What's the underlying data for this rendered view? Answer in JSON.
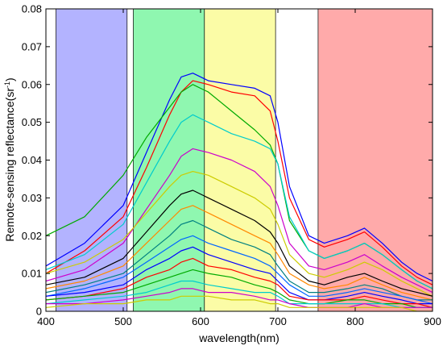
{
  "chart_data": {
    "type": "line",
    "title": "",
    "xlabel": "wavelength(nm)",
    "ylabel_main": "Remote-sensing reflectance(sr",
    "ylabel_sup": "-1",
    "ylabel_close": ")",
    "xlim": [
      400,
      900
    ],
    "ylim": [
      0,
      0.08
    ],
    "x_ticks": [
      400,
      500,
      600,
      700,
      800,
      900
    ],
    "x_tick_labels": [
      "400",
      "500",
      "600",
      "700",
      "800",
      "900"
    ],
    "y_ticks": [
      0,
      0.01,
      0.02,
      0.03,
      0.04,
      0.05,
      0.06,
      0.07,
      0.08
    ],
    "y_tick_labels": [
      "0",
      "0.01",
      "0.02",
      "0.03",
      "0.04",
      "0.05",
      "0.06",
      "0.07",
      "0.08"
    ],
    "grid": false,
    "legend": "none",
    "bands": [
      {
        "range": [
          413,
          505
        ],
        "color": "#b3b3ff"
      },
      {
        "range": [
          513,
          605
        ],
        "color": "#8ff7b0"
      },
      {
        "range": [
          605,
          697
        ],
        "color": "#fbfca6"
      },
      {
        "range": [
          752,
          900
        ],
        "color": "#ffaaaa"
      }
    ],
    "series_colors": [
      "#0000ff",
      "#ff0000",
      "#00aa00",
      "#00cccc",
      "#cc00cc",
      "#cccc00",
      "#000000",
      "#ff8800",
      "#008080",
      "#0066ff"
    ],
    "spectral_key_x": [
      400,
      450,
      500,
      530,
      560,
      575,
      590,
      610,
      640,
      670,
      690,
      700,
      715,
      740,
      760,
      790,
      812,
      835,
      860,
      880,
      900
    ],
    "series": [
      {
        "values": [
          0.012,
          0.018,
          0.028,
          0.042,
          0.056,
          0.062,
          0.063,
          0.061,
          0.06,
          0.059,
          0.057,
          0.05,
          0.033,
          0.02,
          0.018,
          0.02,
          0.022,
          0.018,
          0.013,
          0.01,
          0.008
        ]
      },
      {
        "values": [
          0.01,
          0.016,
          0.025,
          0.038,
          0.052,
          0.058,
          0.061,
          0.06,
          0.058,
          0.057,
          0.053,
          0.045,
          0.03,
          0.019,
          0.017,
          0.019,
          0.021,
          0.017,
          0.012,
          0.009,
          0.007
        ]
      },
      {
        "values": [
          0.02,
          0.025,
          0.036,
          0.046,
          0.054,
          0.058,
          0.06,
          0.058,
          0.053,
          0.048,
          0.044,
          0.039,
          0.024,
          0.016,
          0.014,
          0.016,
          0.018,
          0.015,
          0.011,
          0.008,
          0.006
        ]
      },
      {
        "values": [
          0.011,
          0.015,
          0.023,
          0.034,
          0.045,
          0.05,
          0.052,
          0.05,
          0.047,
          0.045,
          0.043,
          0.039,
          0.025,
          0.016,
          0.014,
          0.016,
          0.018,
          0.015,
          0.011,
          0.008,
          0.006
        ]
      },
      {
        "values": [
          0.008,
          0.011,
          0.018,
          0.027,
          0.036,
          0.041,
          0.043,
          0.042,
          0.04,
          0.037,
          0.033,
          0.028,
          0.018,
          0.012,
          0.011,
          0.013,
          0.015,
          0.012,
          0.009,
          0.007,
          0.005
        ]
      },
      {
        "values": [
          0.01,
          0.013,
          0.019,
          0.026,
          0.033,
          0.036,
          0.037,
          0.036,
          0.033,
          0.03,
          0.027,
          0.023,
          0.015,
          0.01,
          0.009,
          0.011,
          0.013,
          0.011,
          0.008,
          0.006,
          0.004
        ]
      },
      {
        "values": [
          0.007,
          0.009,
          0.014,
          0.021,
          0.028,
          0.031,
          0.032,
          0.03,
          0.027,
          0.024,
          0.021,
          0.018,
          0.012,
          0.008,
          0.007,
          0.009,
          0.01,
          0.008,
          0.006,
          0.005,
          0.004
        ]
      },
      {
        "values": [
          0.006,
          0.008,
          0.012,
          0.018,
          0.024,
          0.027,
          0.028,
          0.026,
          0.023,
          0.02,
          0.018,
          0.015,
          0.01,
          0.007,
          0.006,
          0.007,
          0.009,
          0.007,
          0.005,
          0.004,
          0.003
        ]
      },
      {
        "values": [
          0.005,
          0.007,
          0.01,
          0.015,
          0.02,
          0.023,
          0.024,
          0.022,
          0.019,
          0.017,
          0.015,
          0.012,
          0.008,
          0.005,
          0.005,
          0.006,
          0.007,
          0.006,
          0.004,
          0.003,
          0.003
        ]
      },
      {
        "values": [
          0.004,
          0.006,
          0.009,
          0.013,
          0.017,
          0.019,
          0.02,
          0.018,
          0.016,
          0.014,
          0.012,
          0.01,
          0.007,
          0.004,
          0.004,
          0.005,
          0.006,
          0.005,
          0.004,
          0.003,
          0.002
        ]
      },
      {
        "values": [
          0.004,
          0.005,
          0.007,
          0.011,
          0.014,
          0.016,
          0.017,
          0.015,
          0.013,
          0.011,
          0.01,
          0.008,
          0.005,
          0.003,
          0.003,
          0.004,
          0.005,
          0.004,
          0.003,
          0.002,
          0.002
        ]
      },
      {
        "values": [
          0.003,
          0.004,
          0.006,
          0.009,
          0.011,
          0.013,
          0.014,
          0.012,
          0.011,
          0.009,
          0.008,
          0.007,
          0.004,
          0.003,
          0.003,
          0.003,
          0.004,
          0.003,
          0.002,
          0.002,
          0.001
        ]
      },
      {
        "values": [
          0.003,
          0.004,
          0.005,
          0.007,
          0.009,
          0.01,
          0.011,
          0.01,
          0.009,
          0.007,
          0.006,
          0.005,
          0.003,
          0.002,
          0.002,
          0.003,
          0.003,
          0.002,
          0.002,
          0.001,
          0.001
        ]
      },
      {
        "values": [
          0.002,
          0.003,
          0.004,
          0.005,
          0.007,
          0.008,
          0.008,
          0.007,
          0.006,
          0.005,
          0.005,
          0.004,
          0.002,
          0.002,
          0.002,
          0.002,
          0.002,
          0.002,
          0.001,
          0.001,
          0.001
        ]
      },
      {
        "values": [
          0.002,
          0.002,
          0.003,
          0.004,
          0.005,
          0.006,
          0.006,
          0.005,
          0.005,
          0.004,
          0.003,
          0.003,
          0.002,
          0.001,
          0.001,
          0.001,
          0.002,
          0.001,
          0.001,
          0.001,
          0.001
        ]
      },
      {
        "values": [
          0.001,
          0.002,
          0.002,
          0.003,
          0.003,
          0.004,
          0.004,
          0.004,
          0.003,
          0.003,
          0.002,
          0.002,
          0.001,
          0.001,
          0.001,
          0.001,
          0.001,
          0.001,
          0.001,
          0.0,
          0.0
        ]
      }
    ]
  }
}
